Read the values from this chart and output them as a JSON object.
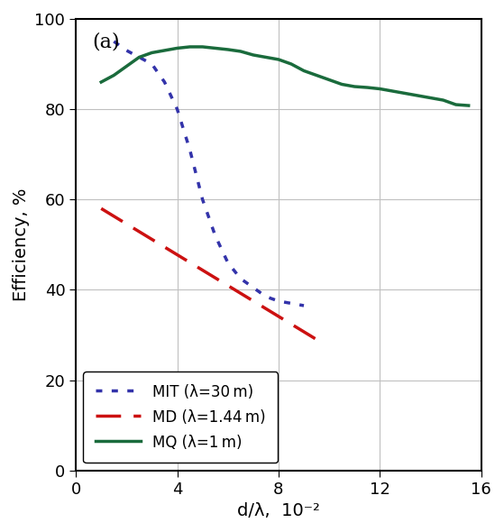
{
  "title_label": "(a)",
  "xlabel": "d/λ,  10⁻²",
  "ylabel": "Efficiency, %",
  "xlim": [
    0,
    16
  ],
  "ylim": [
    0,
    100
  ],
  "xticks": [
    0,
    4,
    8,
    12,
    16
  ],
  "yticks": [
    0,
    20,
    40,
    60,
    80,
    100
  ],
  "MIT": {
    "x": [
      1.5,
      2.0,
      2.5,
      3.0,
      3.5,
      4.0,
      4.5,
      5.0,
      5.5,
      6.0,
      6.5,
      7.0,
      7.5,
      8.0,
      8.5,
      9.0
    ],
    "y": [
      95.0,
      93.0,
      91.5,
      90.0,
      86.0,
      80.0,
      71.0,
      60.0,
      52.0,
      46.0,
      42.5,
      40.5,
      38.5,
      37.5,
      37.0,
      36.5
    ],
    "color": "#3333aa",
    "linestyle": "dotted",
    "linewidth": 2.5,
    "label": "MIT (λ=30 m)"
  },
  "MD": {
    "x": [
      1.0,
      9.5
    ],
    "y": [
      58.0,
      29.0
    ],
    "color": "#cc1111",
    "linestyle": "dashed",
    "linewidth": 2.5,
    "label": "MD (λ=1.44 m)"
  },
  "MQ": {
    "x": [
      1.0,
      1.5,
      2.0,
      2.5,
      3.0,
      3.5,
      4.0,
      4.5,
      5.0,
      5.5,
      6.0,
      6.5,
      7.0,
      7.5,
      8.0,
      8.5,
      9.0,
      9.5,
      10.0,
      10.5,
      11.0,
      11.5,
      12.0,
      12.5,
      13.0,
      13.5,
      14.0,
      14.5,
      15.0,
      15.5
    ],
    "y": [
      86.0,
      87.5,
      89.5,
      91.5,
      92.5,
      93.0,
      93.5,
      93.8,
      93.8,
      93.5,
      93.2,
      92.8,
      92.0,
      91.5,
      91.0,
      90.0,
      88.5,
      87.5,
      86.5,
      85.5,
      85.0,
      84.8,
      84.5,
      84.0,
      83.5,
      83.0,
      82.5,
      82.0,
      81.0,
      80.8
    ],
    "color": "#1a6b3c",
    "linestyle": "solid",
    "linewidth": 2.5,
    "label": "MQ (λ=1 m)"
  },
  "background_color": "#ffffff",
  "grid_color": "#c0c0c0",
  "figure_bg": "#ffffff",
  "legend_fontsize": 12,
  "tick_fontsize": 13,
  "label_fontsize": 14
}
